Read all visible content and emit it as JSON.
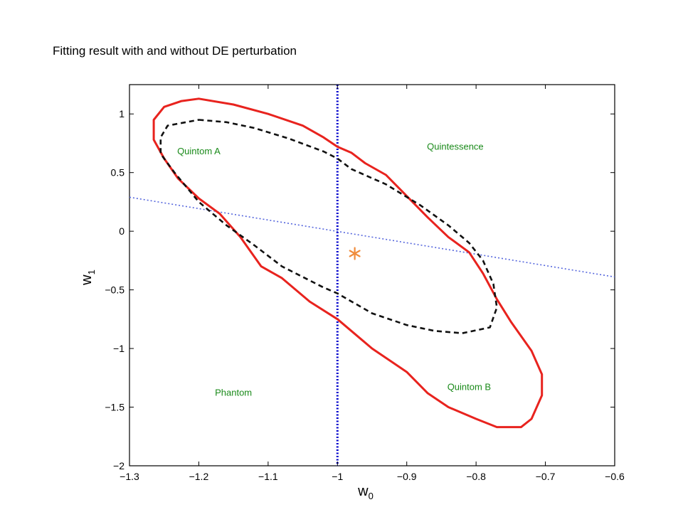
{
  "slide": {
    "title": "Fitting result with and without DE perturbation"
  },
  "chart_data": {
    "type": "contour",
    "xlabel": "w",
    "xlabel_sub": "0",
    "ylabel": "w",
    "ylabel_sub": "1",
    "xlim": [
      -1.3,
      -0.6
    ],
    "ylim": [
      -2,
      1.25
    ],
    "xticks": [
      -1.3,
      -1.2,
      -1.1,
      -1,
      -0.9,
      -0.8,
      -0.7,
      -0.6
    ],
    "xtick_labels": [
      "−1.3",
      "−1.2",
      "−1.1",
      "−1",
      "−0.9",
      "−0.8",
      "−0.7",
      "−0.6"
    ],
    "yticks": [
      -2,
      -1.5,
      -1,
      -0.5,
      0,
      0.5,
      1
    ],
    "ytick_labels": [
      "−2",
      "−1.5",
      "−1",
      "−0.5",
      "0",
      "0.5",
      "1"
    ],
    "grid": false,
    "regions": [
      {
        "label": "Quintom A",
        "x": -1.2,
        "y": 0.68
      },
      {
        "label": "Quintessence",
        "x": -0.83,
        "y": 0.72
      },
      {
        "label": "Phantom",
        "x": -1.15,
        "y": -1.38
      },
      {
        "label": "Quintom B",
        "x": -0.81,
        "y": -1.33
      }
    ],
    "marker": {
      "symbol": "*",
      "x": -0.975,
      "y": -0.19,
      "color": "#f08c3c"
    },
    "reference_lines": [
      {
        "kind": "vertical",
        "x": -1,
        "color": "#0000cc",
        "style": "dotted"
      },
      {
        "kind": "line",
        "points": [
          [
            -1.3,
            0.29
          ],
          [
            -0.6,
            -0.39
          ]
        ],
        "color": "#5566dd",
        "style": "dotted"
      }
    ],
    "series": [
      {
        "color": "#e8231e",
        "style": "solid",
        "points": [
          [
            -1.2,
            1.13
          ],
          [
            -1.15,
            1.08
          ],
          [
            -1.1,
            1.0
          ],
          [
            -1.05,
            0.9
          ],
          [
            -1.02,
            0.8
          ],
          [
            -1.0,
            0.72
          ],
          [
            -0.98,
            0.67
          ],
          [
            -0.96,
            0.58
          ],
          [
            -0.93,
            0.48
          ],
          [
            -0.9,
            0.3
          ],
          [
            -0.87,
            0.12
          ],
          [
            -0.84,
            -0.05
          ],
          [
            -0.81,
            -0.18
          ],
          [
            -0.79,
            -0.36
          ],
          [
            -0.77,
            -0.58
          ],
          [
            -0.75,
            -0.77
          ],
          [
            -0.72,
            -1.02
          ],
          [
            -0.705,
            -1.22
          ],
          [
            -0.705,
            -1.4
          ],
          [
            -0.72,
            -1.6
          ],
          [
            -0.735,
            -1.67
          ],
          [
            -0.77,
            -1.67
          ],
          [
            -0.8,
            -1.6
          ],
          [
            -0.84,
            -1.5
          ],
          [
            -0.87,
            -1.38
          ],
          [
            -0.9,
            -1.2
          ],
          [
            -0.95,
            -1.0
          ],
          [
            -1.0,
            -0.75
          ],
          [
            -1.04,
            -0.6
          ],
          [
            -1.08,
            -0.4
          ],
          [
            -1.11,
            -0.3
          ],
          [
            -1.14,
            -0.05
          ],
          [
            -1.17,
            0.15
          ],
          [
            -1.2,
            0.28
          ],
          [
            -1.23,
            0.45
          ],
          [
            -1.25,
            0.62
          ],
          [
            -1.265,
            0.78
          ],
          [
            -1.265,
            0.95
          ],
          [
            -1.25,
            1.06
          ],
          [
            -1.225,
            1.11
          ],
          [
            -1.2,
            1.13
          ]
        ]
      },
      {
        "color": "#111111",
        "style": "dashed",
        "points": [
          [
            -1.2,
            0.95
          ],
          [
            -1.16,
            0.93
          ],
          [
            -1.12,
            0.88
          ],
          [
            -1.07,
            0.79
          ],
          [
            -1.02,
            0.68
          ],
          [
            -1.0,
            0.62
          ],
          [
            -0.98,
            0.53
          ],
          [
            -0.93,
            0.4
          ],
          [
            -0.88,
            0.22
          ],
          [
            -0.84,
            0.05
          ],
          [
            -0.81,
            -0.1
          ],
          [
            -0.79,
            -0.25
          ],
          [
            -0.775,
            -0.45
          ],
          [
            -0.77,
            -0.65
          ],
          [
            -0.78,
            -0.82
          ],
          [
            -0.82,
            -0.87
          ],
          [
            -0.86,
            -0.85
          ],
          [
            -0.9,
            -0.8
          ],
          [
            -0.95,
            -0.7
          ],
          [
            -1.0,
            -0.53
          ],
          [
            -1.02,
            -0.48
          ],
          [
            -1.08,
            -0.3
          ],
          [
            -1.12,
            -0.12
          ],
          [
            -1.16,
            0.05
          ],
          [
            -1.2,
            0.25
          ],
          [
            -1.235,
            0.5
          ],
          [
            -1.255,
            0.66
          ],
          [
            -1.255,
            0.8
          ],
          [
            -1.245,
            0.9
          ],
          [
            -1.2,
            0.95
          ]
        ]
      }
    ]
  }
}
